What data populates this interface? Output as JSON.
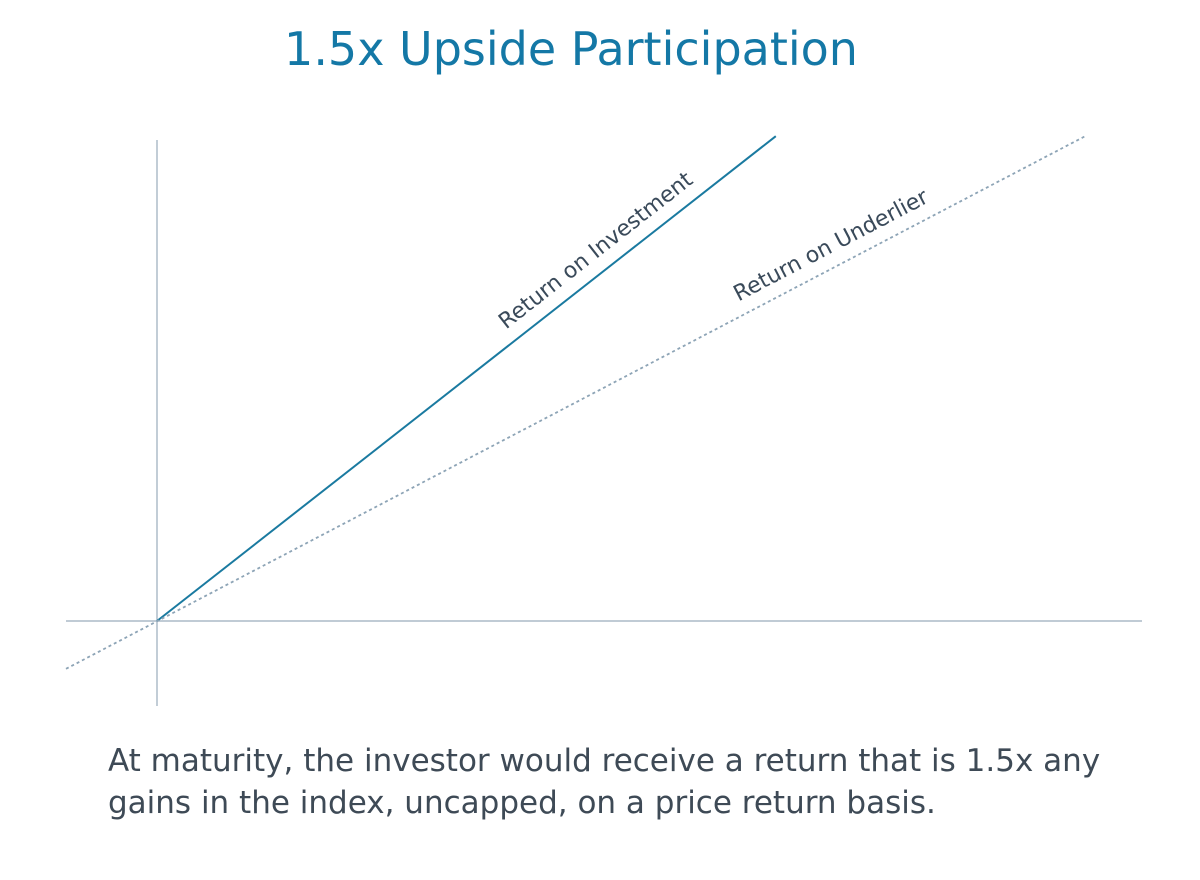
{
  "colors": {
    "title": "#1478a6",
    "investment_line": "#1a7aa0",
    "underlier_line": "#8da4b6",
    "axes": "#9aacbc",
    "label_text": "#3a4a5a",
    "caption_text": "#3e4a56"
  },
  "chart_data": {
    "type": "line",
    "title": "1.5x Upside Participation",
    "xlabel": "",
    "ylabel": "",
    "grid": false,
    "legend": "none",
    "xlim": [
      -1,
      10.8
    ],
    "ylim": [
      -0.94,
      5.27
    ],
    "series": [
      {
        "name": "Return on Investment",
        "style": "solid",
        "points": [
          [
            0,
            0
          ],
          [
            6.8,
            5.27
          ]
        ]
      },
      {
        "name": "Return on Underlier",
        "style": "dotted",
        "points": [
          [
            -1,
            -0.52
          ],
          [
            10.2,
            5.27
          ]
        ]
      }
    ]
  },
  "caption": "At maturity, the investor would receive a return that is 1.5x any gains in the index, uncapped, on a price return basis."
}
